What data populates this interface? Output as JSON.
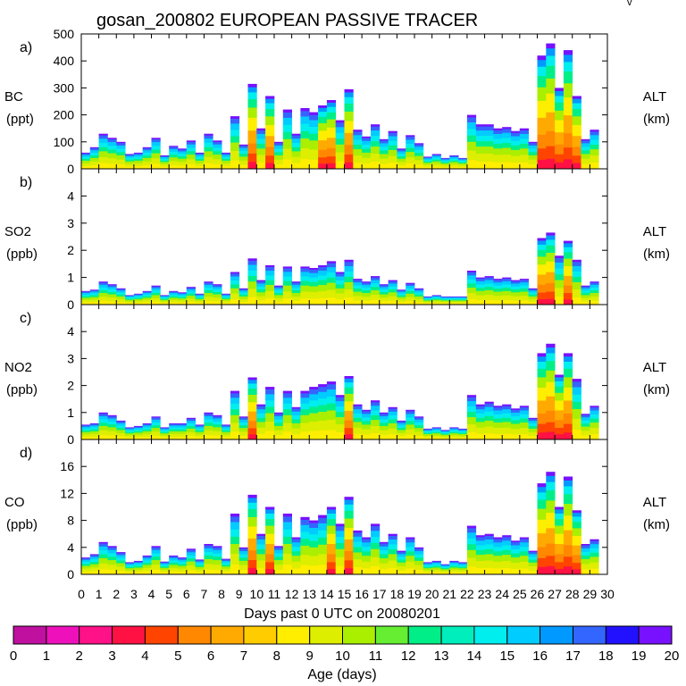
{
  "title": "gosan_200802 EUROPEAN PASSIVE TRACER",
  "corner_mark": "v",
  "xlabel": "Days past 0 UTC on 20080201",
  "x_range": [
    0,
    30
  ],
  "x_ticks": [
    "0",
    "1",
    "2",
    "3",
    "4",
    "5",
    "6",
    "7",
    "8",
    "9",
    "10",
    "11",
    "12",
    "13",
    "14",
    "15",
    "16",
    "17",
    "18",
    "19",
    "20",
    "21",
    "22",
    "23",
    "24",
    "25",
    "26",
    "27",
    "28",
    "29",
    "30"
  ],
  "right_axis_label": "ALT",
  "right_axis_unit": "(km)",
  "colorbar": {
    "label": "Age (days)",
    "range": [
      0,
      20
    ],
    "tick_labels": [
      "0",
      "1",
      "2",
      "3",
      "4",
      "5",
      "6",
      "7",
      "8",
      "9",
      "10",
      "11",
      "12",
      "13",
      "14",
      "15",
      "16",
      "17",
      "18",
      "19",
      "20"
    ],
    "colors": [
      "#880088",
      "#c010a0",
      "#ee11bb",
      "#ff1188",
      "#ff1144",
      "#ff4400",
      "#ff8800",
      "#ffaa00",
      "#ffcc00",
      "#ffee00",
      "#ddee00",
      "#aaee00",
      "#66ee33",
      "#00ee88",
      "#00eebb",
      "#00eeee",
      "#00ccff",
      "#0099ff",
      "#3366ff",
      "#2211ff",
      "#7711ff"
    ]
  },
  "chart_data": [
    {
      "type": "area",
      "panel": "a)",
      "species": "BC",
      "unit": "(ppt)",
      "ylim": [
        0,
        500
      ],
      "y_ticks": [
        "0",
        "100",
        "200",
        "300",
        "400",
        "500"
      ],
      "x": [
        0,
        0.5,
        1,
        1.5,
        2,
        2.5,
        3,
        3.5,
        4,
        4.5,
        5,
        5.5,
        6,
        6.5,
        7,
        7.5,
        8,
        8.5,
        9,
        9.5,
        10,
        10.5,
        11,
        11.5,
        12,
        12.5,
        13,
        13.5,
        14,
        14.5,
        15,
        15.5,
        16,
        16.5,
        17,
        17.5,
        18,
        18.5,
        19,
        19.5,
        20,
        20.5,
        21,
        21.5,
        22,
        22.5,
        23,
        23.5,
        24,
        24.5,
        25,
        25.5,
        26,
        26.5,
        27,
        27.5,
        28,
        28.5,
        29
      ],
      "values": [
        60,
        80,
        130,
        115,
        100,
        55,
        60,
        80,
        115,
        50,
        85,
        75,
        105,
        60,
        130,
        105,
        60,
        195,
        90,
        315,
        150,
        270,
        100,
        220,
        130,
        225,
        210,
        235,
        255,
        180,
        295,
        145,
        120,
        165,
        110,
        140,
        75,
        125,
        95,
        45,
        55,
        40,
        50,
        40,
        200,
        165,
        165,
        150,
        155,
        140,
        150,
        100,
        420,
        465,
        300,
        440,
        270,
        110,
        145
      ]
    },
    {
      "type": "area",
      "panel": "b)",
      "species": "SO2",
      "unit": "(ppb)",
      "ylim": [
        0,
        5
      ],
      "y_ticks": [
        "0",
        "1",
        "2",
        "3",
        "4"
      ],
      "x": [
        0,
        0.5,
        1,
        1.5,
        2,
        2.5,
        3,
        3.5,
        4,
        4.5,
        5,
        5.5,
        6,
        6.5,
        7,
        7.5,
        8,
        8.5,
        9,
        9.5,
        10,
        10.5,
        11,
        11.5,
        12,
        12.5,
        13,
        13.5,
        14,
        14.5,
        15,
        15.5,
        16,
        16.5,
        17,
        17.5,
        18,
        18.5,
        19,
        19.5,
        20,
        20.5,
        21,
        21.5,
        22,
        22.5,
        23,
        23.5,
        24,
        24.5,
        25,
        25.5,
        26,
        26.5,
        27,
        27.5,
        28,
        28.5,
        29
      ],
      "values": [
        0.5,
        0.55,
        0.85,
        0.75,
        0.6,
        0.35,
        0.4,
        0.5,
        0.7,
        0.35,
        0.5,
        0.45,
        0.65,
        0.4,
        0.85,
        0.75,
        0.4,
        1.2,
        0.6,
        1.7,
        0.9,
        1.45,
        0.7,
        1.4,
        0.85,
        1.4,
        1.35,
        1.45,
        1.6,
        1.2,
        1.65,
        0.95,
        0.85,
        1.05,
        0.75,
        0.9,
        0.55,
        0.8,
        0.6,
        0.3,
        0.35,
        0.3,
        0.3,
        0.3,
        1.25,
        1.0,
        1.05,
        0.95,
        1.0,
        0.9,
        0.95,
        0.6,
        2.45,
        2.65,
        1.8,
        2.35,
        1.65,
        0.7,
        0.85
      ]
    },
    {
      "type": "area",
      "panel": "c)",
      "species": "NO2",
      "unit": "(ppb)",
      "ylim": [
        0,
        5
      ],
      "y_ticks": [
        "0",
        "1",
        "2",
        "3",
        "4"
      ],
      "x": [
        0,
        0.5,
        1,
        1.5,
        2,
        2.5,
        3,
        3.5,
        4,
        4.5,
        5,
        5.5,
        6,
        6.5,
        7,
        7.5,
        8,
        8.5,
        9,
        9.5,
        10,
        10.5,
        11,
        11.5,
        12,
        12.5,
        13,
        13.5,
        14,
        14.5,
        15,
        15.5,
        16,
        16.5,
        17,
        17.5,
        18,
        18.5,
        19,
        19.5,
        20,
        20.5,
        21,
        21.5,
        22,
        22.5,
        23,
        23.5,
        24,
        24.5,
        25,
        25.5,
        26,
        26.5,
        27,
        27.5,
        28,
        28.5,
        29
      ],
      "values": [
        0.55,
        0.6,
        1.0,
        0.9,
        0.7,
        0.45,
        0.5,
        0.6,
        0.85,
        0.45,
        0.6,
        0.6,
        0.8,
        0.55,
        1.0,
        0.9,
        0.55,
        1.8,
        0.85,
        2.3,
        1.3,
        1.95,
        1.0,
        1.8,
        1.2,
        1.8,
        1.95,
        2.05,
        2.15,
        1.65,
        2.35,
        1.3,
        1.1,
        1.45,
        1.0,
        1.2,
        0.7,
        1.1,
        0.85,
        0.4,
        0.45,
        0.35,
        0.45,
        0.4,
        1.65,
        1.3,
        1.4,
        1.25,
        1.3,
        1.15,
        1.25,
        0.8,
        3.2,
        3.55,
        2.4,
        3.2,
        2.25,
        0.95,
        1.25
      ]
    },
    {
      "type": "area",
      "panel": "d)",
      "species": "CO",
      "unit": "(ppb)",
      "ylim": [
        0,
        20
      ],
      "y_ticks": [
        "0",
        "4",
        "8",
        "12",
        "16"
      ],
      "x": [
        0,
        0.5,
        1,
        1.5,
        2,
        2.5,
        3,
        3.5,
        4,
        4.5,
        5,
        5.5,
        6,
        6.5,
        7,
        7.5,
        8,
        8.5,
        9,
        9.5,
        10,
        10.5,
        11,
        11.5,
        12,
        12.5,
        13,
        13.5,
        14,
        14.5,
        15,
        15.5,
        16,
        16.5,
        17,
        17.5,
        18,
        18.5,
        19,
        19.5,
        20,
        20.5,
        21,
        21.5,
        22,
        22.5,
        23,
        23.5,
        24,
        24.5,
        25,
        25.5,
        26,
        26.5,
        27,
        27.5,
        28,
        28.5,
        29
      ],
      "values": [
        2.5,
        3.0,
        4.8,
        4.2,
        3.3,
        1.8,
        2.0,
        2.8,
        4.2,
        1.9,
        2.8,
        2.5,
        3.8,
        2.2,
        4.5,
        4.2,
        2.3,
        9.0,
        4.0,
        11.8,
        6.0,
        10.0,
        4.2,
        9.0,
        5.5,
        8.5,
        8.0,
        8.8,
        10.0,
        7.5,
        11.5,
        6.5,
        5.5,
        7.5,
        4.8,
        6.0,
        3.5,
        5.5,
        4.0,
        1.8,
        2.0,
        1.5,
        2.0,
        1.8,
        7.2,
        5.8,
        6.0,
        5.5,
        5.8,
        5.0,
        5.5,
        3.5,
        13.5,
        15.2,
        10.0,
        14.5,
        9.5,
        4.5,
        5.2
      ]
    }
  ]
}
